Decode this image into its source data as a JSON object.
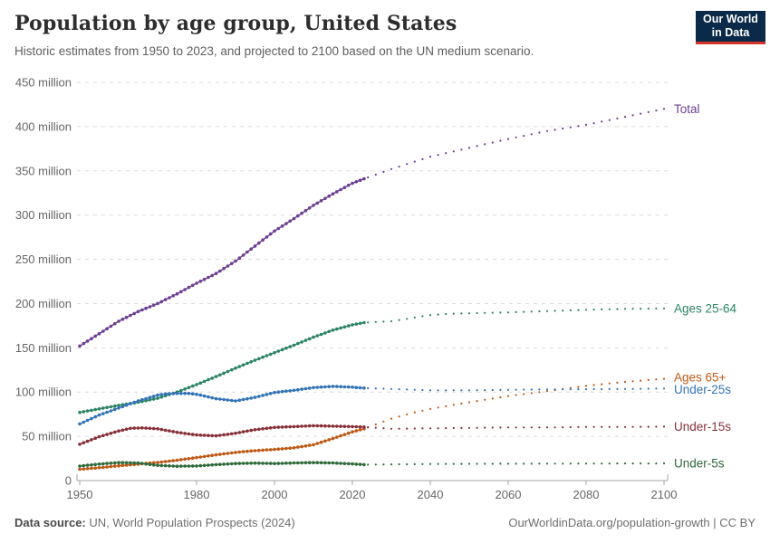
{
  "header": {
    "title": "Population by age group, United States",
    "subtitle": "Historic estimates from 1950 to 2023, and projected to 2100 based on the UN medium scenario.",
    "logo": {
      "line1": "Our World",
      "line2": "in Data"
    }
  },
  "footer": {
    "datasource_label": "Data source:",
    "datasource": " UN, World Population Prospects (2024)",
    "link": "OurWorldinData.org/population-growth | CC BY"
  },
  "style": {
    "grid_color": "#dcdcdc",
    "axis_color": "#a3a3a3",
    "tick_text_color": "#666666",
    "logo_bg": "#0b2948",
    "logo_red": "#d7352c"
  },
  "chart_data": {
    "type": "line",
    "title": "Population by age group, United States",
    "xlabel": "",
    "ylabel": "",
    "xlim": [
      1950,
      2100
    ],
    "ylim": [
      0,
      450
    ],
    "grid": true,
    "legend_position": "right-end-labels",
    "projection_start": 2023,
    "x_ticks": [
      1950,
      1980,
      2000,
      2020,
      2040,
      2060,
      2080,
      2100
    ],
    "y_ticks": [
      {
        "value": 450,
        "label": "450 million"
      },
      {
        "value": 400,
        "label": "400 million"
      },
      {
        "value": 350,
        "label": "350 million"
      },
      {
        "value": 300,
        "label": "300 million"
      },
      {
        "value": 250,
        "label": "250 million"
      },
      {
        "value": 200,
        "label": "200 million"
      },
      {
        "value": 150,
        "label": "150 million"
      },
      {
        "value": 100,
        "label": "100 million"
      },
      {
        "value": 50,
        "label": "50 million"
      },
      {
        "value": 0,
        "label": "0"
      }
    ],
    "series": [
      {
        "name": "Total",
        "slug": "total",
        "color": "#6d3e91",
        "points": [
          [
            1950,
            152
          ],
          [
            1955,
            166
          ],
          [
            1960,
            180
          ],
          [
            1965,
            191
          ],
          [
            1970,
            200
          ],
          [
            1975,
            211
          ],
          [
            1980,
            223
          ],
          [
            1985,
            234
          ],
          [
            1990,
            248
          ],
          [
            1995,
            265
          ],
          [
            2000,
            282
          ],
          [
            2005,
            296
          ],
          [
            2010,
            311
          ],
          [
            2015,
            324
          ],
          [
            2020,
            336
          ],
          [
            2023,
            341
          ],
          [
            2030,
            352
          ],
          [
            2040,
            366
          ],
          [
            2050,
            376
          ],
          [
            2060,
            386
          ],
          [
            2070,
            395
          ],
          [
            2080,
            402
          ],
          [
            2090,
            411
          ],
          [
            2100,
            420
          ]
        ]
      },
      {
        "name": "Ages 25-64",
        "slug": "ages-25-64",
        "color": "#2c8465",
        "points": [
          [
            1950,
            77
          ],
          [
            1955,
            81
          ],
          [
            1960,
            85
          ],
          [
            1965,
            88.5
          ],
          [
            1970,
            93
          ],
          [
            1975,
            100
          ],
          [
            1980,
            108.5
          ],
          [
            1985,
            117.5
          ],
          [
            1990,
            127
          ],
          [
            1995,
            136
          ],
          [
            2000,
            144.5
          ],
          [
            2005,
            153
          ],
          [
            2010,
            162
          ],
          [
            2015,
            170
          ],
          [
            2020,
            176
          ],
          [
            2023,
            178.5
          ],
          [
            2030,
            180
          ],
          [
            2035,
            183.5
          ],
          [
            2040,
            187
          ],
          [
            2045,
            188.5
          ],
          [
            2050,
            189
          ],
          [
            2060,
            190
          ],
          [
            2070,
            191.5
          ],
          [
            2080,
            193
          ],
          [
            2090,
            194
          ],
          [
            2100,
            194.5
          ]
        ]
      },
      {
        "name": "Ages 65+",
        "slug": "ages-65-plus",
        "color": "#be5915",
        "points": [
          [
            1950,
            12.8
          ],
          [
            1955,
            14.5
          ],
          [
            1960,
            16.7
          ],
          [
            1965,
            18.5
          ],
          [
            1970,
            20.5
          ],
          [
            1975,
            23
          ],
          [
            1980,
            26
          ],
          [
            1985,
            29
          ],
          [
            1990,
            31.8
          ],
          [
            1995,
            33.8
          ],
          [
            2000,
            35.2
          ],
          [
            2005,
            37
          ],
          [
            2010,
            40.5
          ],
          [
            2015,
            47.5
          ],
          [
            2020,
            55
          ],
          [
            2023,
            58.5
          ],
          [
            2030,
            70
          ],
          [
            2035,
            76
          ],
          [
            2040,
            81
          ],
          [
            2050,
            88.5
          ],
          [
            2060,
            95.5
          ],
          [
            2070,
            101
          ],
          [
            2080,
            107
          ],
          [
            2090,
            111.5
          ],
          [
            2100,
            115
          ]
        ]
      },
      {
        "name": "Under-25s",
        "slug": "under-25s",
        "color": "#3274b5",
        "points": [
          [
            1950,
            64
          ],
          [
            1955,
            74
          ],
          [
            1960,
            82
          ],
          [
            1965,
            90
          ],
          [
            1970,
            96.5
          ],
          [
            1972,
            98
          ],
          [
            1975,
            98.5
          ],
          [
            1978,
            98.5
          ],
          [
            1980,
            97.5
          ],
          [
            1985,
            92.5
          ],
          [
            1990,
            90
          ],
          [
            1995,
            94
          ],
          [
            2000,
            99.5
          ],
          [
            2005,
            102
          ],
          [
            2010,
            105
          ],
          [
            2015,
            106.5
          ],
          [
            2020,
            105.5
          ],
          [
            2023,
            104.5
          ],
          [
            2030,
            103.5
          ],
          [
            2040,
            102
          ],
          [
            2050,
            102
          ],
          [
            2060,
            102.5
          ],
          [
            2070,
            103
          ],
          [
            2080,
            103.2
          ],
          [
            2090,
            103.5
          ],
          [
            2100,
            104
          ]
        ]
      },
      {
        "name": "Under-15s",
        "slug": "under-15s",
        "color": "#883039",
        "points": [
          [
            1950,
            41
          ],
          [
            1955,
            49.5
          ],
          [
            1960,
            56
          ],
          [
            1963,
            59
          ],
          [
            1966,
            59.5
          ],
          [
            1970,
            58.5
          ],
          [
            1975,
            54.5
          ],
          [
            1980,
            51.5
          ],
          [
            1985,
            50.5
          ],
          [
            1990,
            53.5
          ],
          [
            1995,
            57.5
          ],
          [
            2000,
            60
          ],
          [
            2005,
            61
          ],
          [
            2010,
            62
          ],
          [
            2015,
            61.5
          ],
          [
            2020,
            61
          ],
          [
            2023,
            60.5
          ],
          [
            2030,
            58.5
          ],
          [
            2040,
            59
          ],
          [
            2050,
            59.5
          ],
          [
            2060,
            60
          ],
          [
            2070,
            60
          ],
          [
            2080,
            60.5
          ],
          [
            2090,
            60.5
          ],
          [
            2100,
            61
          ]
        ]
      },
      {
        "name": "Under-5s",
        "slug": "under-5s",
        "color": "#2f6a3c",
        "points": [
          [
            1950,
            16.4
          ],
          [
            1955,
            18.6
          ],
          [
            1960,
            20.3
          ],
          [
            1965,
            19.8
          ],
          [
            1970,
            17.2
          ],
          [
            1975,
            16.2
          ],
          [
            1980,
            16.5
          ],
          [
            1985,
            18
          ],
          [
            1990,
            19.2
          ],
          [
            1995,
            19.7
          ],
          [
            2000,
            19.2
          ],
          [
            2005,
            19.9
          ],
          [
            2010,
            20.3
          ],
          [
            2015,
            19.9
          ],
          [
            2020,
            18.8
          ],
          [
            2023,
            18
          ],
          [
            2030,
            18.3
          ],
          [
            2040,
            18.7
          ],
          [
            2050,
            18.9
          ],
          [
            2060,
            19
          ],
          [
            2070,
            19.1
          ],
          [
            2080,
            19.2
          ],
          [
            2090,
            19.3
          ],
          [
            2100,
            19.4
          ]
        ]
      }
    ]
  }
}
